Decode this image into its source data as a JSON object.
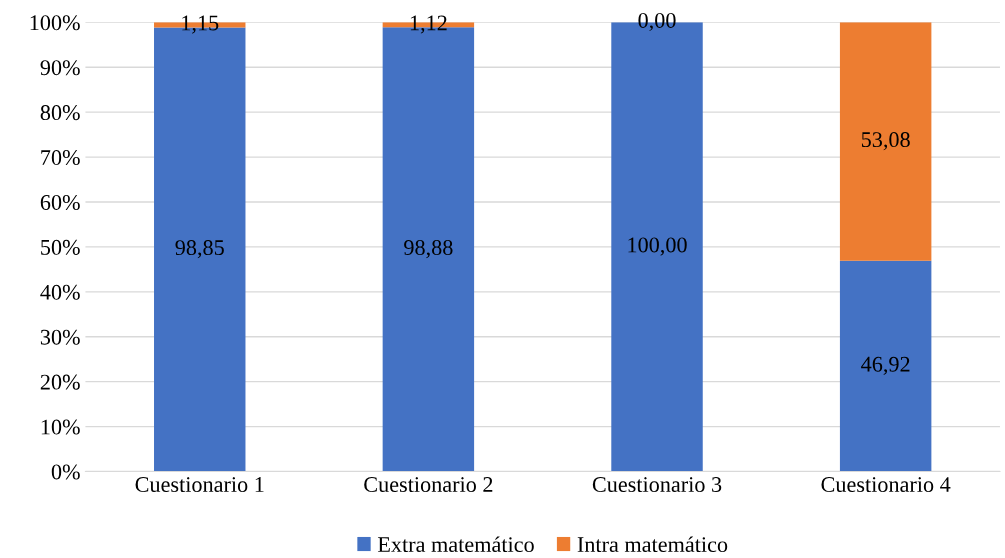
{
  "chart_data": {
    "type": "bar",
    "stacked": true,
    "categories": [
      "Cuestionario 1",
      "Cuestionario 2",
      "Cuestionario 3",
      "Cuestionario 4"
    ],
    "series": [
      {
        "name": "Extra matemático",
        "color": "#4472c4",
        "values": [
          98.85,
          98.88,
          100.0,
          46.92
        ],
        "value_labels": [
          "98,85",
          "98,88",
          "100,00",
          "46,92"
        ]
      },
      {
        "name": "Intra matemático",
        "color": "#ed7d31",
        "values": [
          1.15,
          1.12,
          0.0,
          53.08
        ],
        "value_labels": [
          "1,15",
          "1,12",
          "0,00",
          "53,08"
        ]
      }
    ],
    "ylim": [
      0,
      100
    ],
    "yticks": [
      {
        "value": 0,
        "label": "0%"
      },
      {
        "value": 10,
        "label": "10%"
      },
      {
        "value": 20,
        "label": "20%"
      },
      {
        "value": 30,
        "label": "30%"
      },
      {
        "value": 40,
        "label": "40%"
      },
      {
        "value": 50,
        "label": "50%"
      },
      {
        "value": 60,
        "label": "60%"
      },
      {
        "value": 70,
        "label": "70%"
      },
      {
        "value": 80,
        "label": "80%"
      },
      {
        "value": 90,
        "label": "90%"
      },
      {
        "value": 100,
        "label": "100%"
      }
    ],
    "grid": "y",
    "legend": "bottom"
  }
}
